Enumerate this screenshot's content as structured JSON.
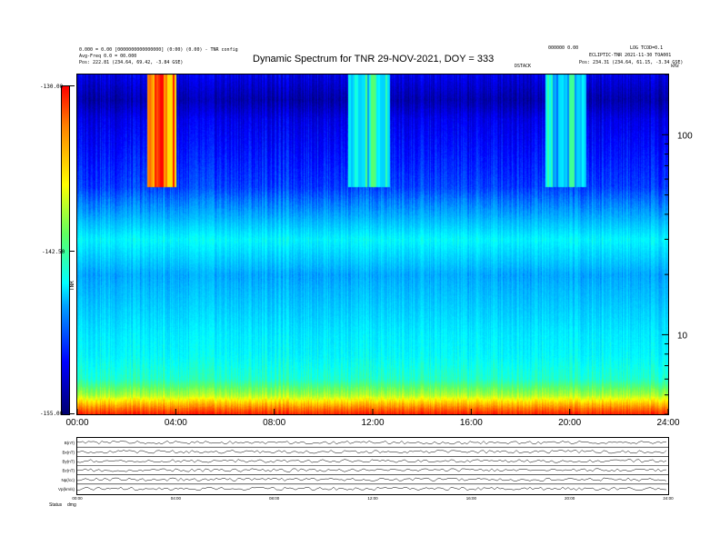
{
  "header": {
    "title": "Dynamic Spectrum for TNR 29-NOV-2021, DOY = 333",
    "meta_left": [
      "0.000 = 0.00 [0000000000000000] (0:00) (0.00) - TNR config",
      "Avg-Freq 0.0 = 00.000",
      "Pos:     222.81 (234.64, 69.42, -3.84 GSE)"
    ],
    "meta_right": [
      "000000 0.00",
      "LOG TCOD=0.1",
      "ECLIPTIC-TNR 2021-11-30 TOA001",
      "Pos:    234.31 (234.64, 61.15, -3.34 GSE)"
    ],
    "meta_center": "DSTACK",
    "corner": "kHz"
  },
  "colorbar": {
    "top_label": "-130.00",
    "mid_label": "-142.50",
    "bottom_label": "-155.00",
    "unit": "TNR"
  },
  "chart_data": [
    {
      "type": "heatmap",
      "title": "Dynamic Spectrum for TNR 29-NOV-2021, DOY = 333",
      "xlabel": "",
      "ylabel": "",
      "x_ticks": [
        "00:00",
        "04:00",
        "08:00",
        "12:00",
        "16:00",
        "20:00",
        "24:00"
      ],
      "x_range": [
        "00:00",
        "24:00"
      ],
      "y_ticks_right": [
        "100",
        "10"
      ],
      "y_scale": "log",
      "y_range": [
        4,
        200
      ],
      "color_range": [
        -155.0,
        -130.0
      ],
      "colormap": [
        "#000070",
        "#0000ff",
        "#00a0ff",
        "#00ffff",
        "#60ff60",
        "#ffff00",
        "#ff8000",
        "#ff0000"
      ],
      "intensity_profile": {
        "freq": [
          4,
          5,
          6,
          8,
          10,
          15,
          20,
          30,
          40,
          55,
          80,
          120,
          150,
          200
        ],
        "level": [
          -130.5,
          -139.0,
          -143.0,
          -144.5,
          -145.0,
          -146.5,
          -147.5,
          -144.5,
          -147.5,
          -150.0,
          -151.0,
          -152.0,
          -153.5,
          -152.0
        ]
      },
      "bursts": [
        {
          "start": "02:50",
          "end": "04:00",
          "freq_min": 55,
          "freq_max": 200,
          "peak": -130.0
        },
        {
          "start": "11:00",
          "end": "12:40",
          "freq_min": 55,
          "freq_max": 200,
          "peak": -140.0
        },
        {
          "start": "19:00",
          "end": "20:40",
          "freq_min": 55,
          "freq_max": 200,
          "peak": -141.0
        }
      ]
    },
    {
      "type": "line",
      "panel_labels": [
        "B(nT)",
        "Bx(nT)",
        "By(nT)",
        "Bz(nT)",
        "Np(/cc)",
        "Vp(km/s)"
      ],
      "x_ticks": [
        "00:00",
        "04:00",
        "08:00",
        "12:00",
        "16:00",
        "20:00",
        "24:00"
      ],
      "footer": [
        "Status",
        "dmg"
      ]
    }
  ]
}
